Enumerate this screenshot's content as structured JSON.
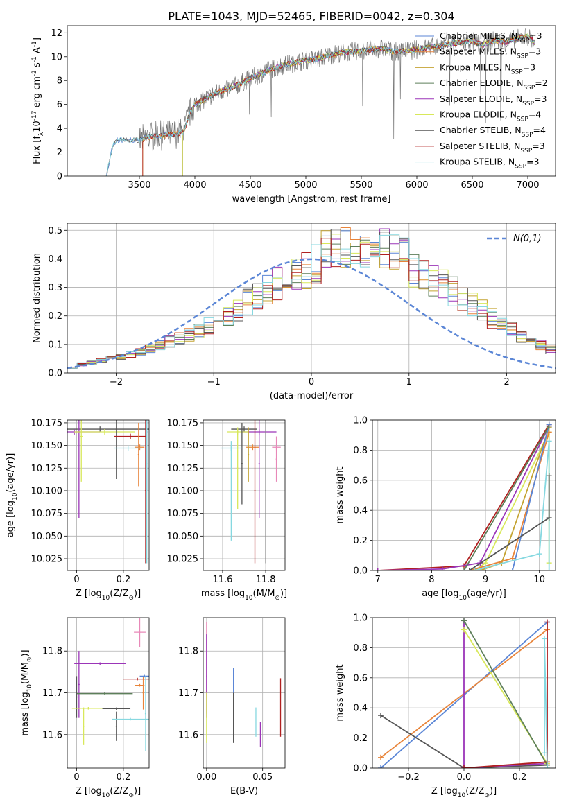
{
  "figure_title": "PLATE=1043, MJD=52465, FIBERID=0042, z=0.304",
  "models": [
    {
      "label": "Chabrier MILES, N$_{SSP}$=3",
      "color": "#5b86d6"
    },
    {
      "label": "Salpeter MILES, N$_{SSP}$=3",
      "color": "#e8843a"
    },
    {
      "label": "Kroupa MILES, N$_{SSP}$=3",
      "color": "#c4a332"
    },
    {
      "label": "Chabrier ELODIE, N$_{SSP}$=2",
      "color": "#5d7f5a"
    },
    {
      "label": "Salpeter ELODIE, N$_{SSP}$=3",
      "color": "#9b35b8"
    },
    {
      "label": "Kroupa ELODIE, N$_{SSP}$=4",
      "color": "#d8e85a"
    },
    {
      "label": "Chabrier STELIB, N$_{SSP}$=4",
      "color": "#555555"
    },
    {
      "label": "Salpeter STELIB, N$_{SSP}$=3",
      "color": "#b02020"
    },
    {
      "label": "Kroupa STELIB, N$_{SSP}$=3",
      "color": "#86d8e0"
    }
  ],
  "extra_colors": {
    "pink": "#e888b8",
    "gray": "#888888"
  },
  "chart_data": [
    {
      "id": "spectrum",
      "type": "line",
      "xlabel": "wavelength [Angstrom, rest frame]",
      "ylabel": "Flux [f$_\\lambda$10$^{-17}$ erg cm$^{-2}$ s$^{-1}$ A$^{-1}$]",
      "xlim": [
        2850,
        7250
      ],
      "ylim": [
        0,
        12.6
      ],
      "xticks": [
        3500,
        4000,
        4500,
        5000,
        5500,
        6000,
        6500,
        7000
      ],
      "yticks": [
        0,
        2,
        4,
        6,
        8,
        10,
        12
      ],
      "legend_location": "top-right",
      "continuum_x": [
        3200,
        3260,
        3300,
        3400,
        3500,
        3600,
        3700,
        3800,
        3900,
        3950,
        4000,
        4100,
        4200,
        4300,
        4400,
        4500,
        4600,
        4700,
        4800,
        4900,
        5000,
        5100,
        5200,
        5300,
        5400,
        5500,
        5600,
        5700,
        5800,
        5900,
        6000,
        6100,
        6200,
        6300,
        6400,
        6500,
        6600,
        6700,
        6800,
        6900,
        7000,
        7060
      ],
      "continuum_y": [
        0,
        2.5,
        3.0,
        3.0,
        3.0,
        3.3,
        3.4,
        3.5,
        3.7,
        5.2,
        6.0,
        6.5,
        7.0,
        7.3,
        7.7,
        8.2,
        8.6,
        9.0,
        9.3,
        9.5,
        9.7,
        9.8,
        10.1,
        10.3,
        10.4,
        10.5,
        10.6,
        10.7,
        10.4,
        10.5,
        10.6,
        10.8,
        10.9,
        11.1,
        11.2,
        11.3,
        11.0,
        11.4,
        11.2,
        11.5,
        11.7,
        11.2
      ],
      "model_start_wavelengths": [
        3200,
        3530,
        3530,
        3890,
        3890,
        3890,
        3200,
        3530,
        3200
      ]
    },
    {
      "id": "residual_histogram",
      "type": "bar",
      "xlabel": "(data-model)/error",
      "ylabel": "Normed distribution",
      "xlim": [
        -2.5,
        2.5
      ],
      "ylim": [
        0,
        0.525
      ],
      "xticks": [
        -2,
        -1,
        0,
        1,
        2
      ],
      "yticks": [
        0.0,
        0.1,
        0.2,
        0.3,
        0.4,
        0.5
      ],
      "grid": true,
      "legend_location": "top-right",
      "reference_curve": {
        "label": "$\\mathcal{N}(0,1)$",
        "color": "#5b86d6",
        "style": "dashed"
      },
      "bin_edges_start": -2.5,
      "bin_width": 0.1,
      "base_values": [
        0.02,
        0.03,
        0.035,
        0.045,
        0.05,
        0.055,
        0.065,
        0.075,
        0.085,
        0.095,
        0.11,
        0.12,
        0.135,
        0.15,
        0.165,
        0.185,
        0.2,
        0.22,
        0.245,
        0.27,
        0.29,
        0.31,
        0.325,
        0.34,
        0.36,
        0.375,
        0.385,
        0.39,
        0.395,
        0.4,
        0.4,
        0.395,
        0.39,
        0.38,
        0.37,
        0.355,
        0.34,
        0.325,
        0.305,
        0.285,
        0.26,
        0.235,
        0.215,
        0.19,
        0.17,
        0.15,
        0.13,
        0.11,
        0.095,
        0.08
      ]
    },
    {
      "id": "age_vs_Z",
      "type": "scatter",
      "xlabel": "Z [log$_{10}$(Z/Z$_\\odot$)]",
      "ylabel": "age  [log$_{10}$(age/yr)]",
      "xlim": [
        -0.04,
        0.31
      ],
      "ylim": [
        10.012,
        10.178
      ],
      "xticks": [
        0.0,
        0.2
      ],
      "yticks": [
        10.025,
        10.05,
        10.075,
        10.1,
        10.125,
        10.15,
        10.175
      ],
      "ytick_labels": [
        "10.025",
        "10.050",
        "10.075",
        "10.100",
        "10.125",
        "10.150",
        "10.175"
      ],
      "grid": true,
      "points": [
        {
          "x": 0.1,
          "y": 10.168,
          "xerr": 0.25,
          "yerr": 0.003,
          "model": 6
        },
        {
          "x": 0.01,
          "y": 10.165,
          "xerr": 0.005,
          "yerr": 0.095,
          "model": 4
        },
        {
          "x": -0.01,
          "y": 10.165,
          "xerr": 0.11,
          "yerr": 0.003,
          "model": 4
        },
        {
          "x": 0.12,
          "y": 10.165,
          "xerr": 0.13,
          "yerr": 0.003,
          "model": 5
        },
        {
          "x": 0.02,
          "y": 10.16,
          "xerr": 0.005,
          "yerr": 0.05,
          "model": 5
        },
        {
          "x": 0.17,
          "y": 10.168,
          "xerr": 0.003,
          "yerr": 0.055,
          "model": 6
        },
        {
          "x": 0.23,
          "y": 10.16,
          "xerr": 0.07,
          "yerr": 0.003,
          "model": 7
        },
        {
          "x": 0.265,
          "y": 10.14,
          "xerr": 0.003,
          "yerr": 0.035,
          "model": 1
        },
        {
          "x": 0.27,
          "y": 10.148,
          "xerr": 0.02,
          "yerr": 0.003,
          "model": 1
        },
        {
          "x": 0.22,
          "y": 10.147,
          "xerr": 0.06,
          "yerr": 0.003,
          "model": 8
        },
        {
          "x": 0.3,
          "y": 10.165,
          "xerr": 0.003,
          "yerr": 0.065,
          "model": 0
        },
        {
          "x": 0.3,
          "y": 10.13,
          "xerr": 0.003,
          "yerr": 0.11,
          "model": 8
        },
        {
          "x": 0.295,
          "y": 10.1,
          "xerr": 0.003,
          "yerr": 0.08,
          "model": 7
        }
      ]
    },
    {
      "id": "age_vs_mass",
      "type": "scatter",
      "xlabel": "mass [log$_{10}$(M/M$_\\odot$)]",
      "ylabel": "",
      "xlim": [
        11.51,
        11.89
      ],
      "ylim": [
        10.012,
        10.178
      ],
      "xticks": [
        11.6,
        11.8
      ],
      "yticks": [
        10.025,
        10.05,
        10.075,
        10.1,
        10.125,
        10.15,
        10.175
      ],
      "ytick_labels": [
        "10.025",
        "10.050",
        "10.075",
        "10.100",
        "10.125",
        "10.150",
        "10.175"
      ],
      "grid": true,
      "points": [
        {
          "x": 11.7,
          "y": 10.168,
          "xerr": 0.06,
          "yerr": 0.003,
          "model": 6
        },
        {
          "x": 11.77,
          "y": 10.165,
          "xerr": 0.08,
          "yerr": 0.003,
          "model": 4
        },
        {
          "x": 11.77,
          "y": 10.13,
          "xerr": 0.003,
          "yerr": 0.06,
          "model": 4
        },
        {
          "x": 11.67,
          "y": 10.165,
          "xerr": 0.05,
          "yerr": 0.003,
          "model": 5
        },
        {
          "x": 11.67,
          "y": 10.125,
          "xerr": 0.003,
          "yerr": 0.045,
          "model": 5
        },
        {
          "x": 11.69,
          "y": 10.13,
          "xerr": 0.003,
          "yerr": 0.045,
          "model": 6
        },
        {
          "x": 11.64,
          "y": 10.147,
          "xerr": 0.05,
          "yerr": 0.003,
          "model": 8
        },
        {
          "x": 11.64,
          "y": 10.1,
          "xerr": 0.003,
          "yerr": 0.055,
          "model": 8
        },
        {
          "x": 11.74,
          "y": 10.148,
          "xerr": 0.03,
          "yerr": 0.003,
          "model": 1
        },
        {
          "x": 11.72,
          "y": 10.14,
          "xerr": 0.003,
          "yerr": 0.03,
          "model": 2
        },
        {
          "x": 11.75,
          "y": 10.1,
          "xerr": 0.003,
          "yerr": 0.08,
          "model": 7
        },
        {
          "x": 11.85,
          "y": 10.135,
          "xerr": 0.003,
          "yerr": 0.025,
          "model": "pink"
        },
        {
          "x": 11.85,
          "y": 10.148,
          "xerr": 0.02,
          "yerr": 0.003,
          "model": "pink"
        },
        {
          "x": 11.8,
          "y": 10.1,
          "xerr": 0.003,
          "yerr": 0.08,
          "model": "gray"
        }
      ]
    },
    {
      "id": "weight_vs_age",
      "type": "line",
      "xlabel": "age  [log$_{10}$(age/yr)]",
      "ylabel": "mass weight",
      "xlim": [
        6.9,
        10.3
      ],
      "ylim": [
        0,
        1.0
      ],
      "xticks": [
        7,
        8,
        9,
        10
      ],
      "yticks": [
        0.0,
        0.2,
        0.4,
        0.6,
        0.8,
        1.0
      ],
      "grid": true,
      "series": [
        {
          "model": 7,
          "x": [
            7.0,
            8.6,
            10.18
          ],
          "y": [
            0.0,
            0.03,
            0.97
          ]
        },
        {
          "model": 4,
          "x": [
            7.0,
            8.2,
            8.9,
            10.18
          ],
          "y": [
            0.0,
            0.01,
            0.05,
            0.96
          ]
        },
        {
          "model": 5,
          "x": [
            8.8,
            9.0,
            10.18,
            10.18
          ],
          "y": [
            0.0,
            0.05,
            0.92,
            0.05
          ]
        },
        {
          "model": 2,
          "x": [
            8.9,
            9.3,
            10.18
          ],
          "y": [
            0.0,
            0.05,
            0.95
          ]
        },
        {
          "model": 1,
          "x": [
            8.7,
            9.5,
            10.18
          ],
          "y": [
            0.0,
            0.08,
            0.92
          ]
        },
        {
          "model": 0,
          "x": [
            9.5,
            10.18
          ],
          "y": [
            0.0,
            0.97
          ]
        },
        {
          "model": 8,
          "x": [
            8.8,
            9.0,
            10.0,
            10.18,
            10.18
          ],
          "y": [
            0.0,
            0.02,
            0.11,
            0.86,
            0.0
          ]
        },
        {
          "model": 6,
          "x": [
            8.7,
            10.18,
            10.18
          ],
          "y": [
            0.0,
            0.35,
            0.63
          ]
        },
        {
          "model": 3,
          "x": [
            8.6,
            10.18
          ],
          "y": [
            0.0,
            0.96
          ]
        }
      ]
    },
    {
      "id": "mass_vs_Z",
      "type": "scatter",
      "xlabel": "Z [log$_{10}$(Z/Z$_\\odot$)]",
      "ylabel": "mass [log$_{10}$(M/M$_\\odot$)]",
      "xlim": [
        -0.04,
        0.31
      ],
      "ylim": [
        11.52,
        11.88
      ],
      "xticks": [
        0.0,
        0.2
      ],
      "yticks": [
        11.6,
        11.7,
        11.8
      ],
      "grid": true,
      "points": [
        {
          "x": 0.1,
          "y": 11.77,
          "xerr": 0.11,
          "yerr": 0.003,
          "model": 4
        },
        {
          "x": 0.01,
          "y": 11.72,
          "xerr": 0.003,
          "yerr": 0.08,
          "model": 4
        },
        {
          "x": 0.12,
          "y": 11.698,
          "xerr": 0.12,
          "yerr": 0.003,
          "model": 3
        },
        {
          "x": 0.0,
          "y": 11.69,
          "xerr": 0.003,
          "yerr": 0.05,
          "model": 6
        },
        {
          "x": 0.05,
          "y": 11.663,
          "xerr": 0.07,
          "yerr": 0.003,
          "model": 5
        },
        {
          "x": 0.03,
          "y": 11.62,
          "xerr": 0.003,
          "yerr": 0.045,
          "model": 5
        },
        {
          "x": 0.17,
          "y": 11.662,
          "xerr": 0.06,
          "yerr": 0.003,
          "model": 6
        },
        {
          "x": 0.17,
          "y": 11.62,
          "xerr": 0.003,
          "yerr": 0.035,
          "model": 6
        },
        {
          "x": 0.23,
          "y": 11.637,
          "xerr": 0.08,
          "yerr": 0.003,
          "model": 8
        },
        {
          "x": 0.26,
          "y": 11.733,
          "xerr": 0.06,
          "yerr": 0.003,
          "model": 7
        },
        {
          "x": 0.285,
          "y": 11.7,
          "xerr": 0.003,
          "yerr": 0.04,
          "model": 1
        },
        {
          "x": 0.27,
          "y": 11.718,
          "xerr": 0.02,
          "yerr": 0.003,
          "model": 1
        },
        {
          "x": 0.29,
          "y": 11.74,
          "xerr": 0.02,
          "yerr": 0.003,
          "model": 0
        },
        {
          "x": 0.295,
          "y": 11.65,
          "xerr": 0.003,
          "yerr": 0.09,
          "model": 8
        },
        {
          "x": 0.27,
          "y": 11.845,
          "xerr": 0.025,
          "yerr": 0.035,
          "model": "pink"
        }
      ]
    },
    {
      "id": "mass_vs_ebv",
      "type": "scatter",
      "xlabel": "E(B-V)",
      "ylabel": "",
      "xlim": [
        -0.003,
        0.07
      ],
      "ylim": [
        11.52,
        11.88
      ],
      "xticks": [
        0.0,
        0.05
      ],
      "xtick_labels": [
        "0.00",
        "0.05"
      ],
      "yticks": [
        11.6,
        11.7,
        11.8
      ],
      "grid": true,
      "points": [
        {
          "x": 0.0,
          "y": 11.76,
          "xerr": 0.0003,
          "yerr": 0.11,
          "model": "pink"
        },
        {
          "x": 0.0,
          "y": 11.74,
          "xerr": 0.0003,
          "yerr": 0.1,
          "model": 4
        },
        {
          "x": 0.0,
          "y": 11.64,
          "xerr": 0.0003,
          "yerr": 0.06,
          "model": 5
        },
        {
          "x": 0.024,
          "y": 11.72,
          "xerr": 0.0003,
          "yerr": 0.04,
          "model": 0
        },
        {
          "x": 0.024,
          "y": 11.64,
          "xerr": 0.0003,
          "yerr": 0.06,
          "model": 6
        },
        {
          "x": 0.044,
          "y": 11.63,
          "xerr": 0.0003,
          "yerr": 0.035,
          "model": 8
        },
        {
          "x": 0.048,
          "y": 11.6,
          "xerr": 0.0003,
          "yerr": 0.03,
          "model": 4
        },
        {
          "x": 0.066,
          "y": 11.665,
          "xerr": 0.0003,
          "yerr": 0.07,
          "model": 7
        }
      ]
    },
    {
      "id": "weight_vs_Z",
      "type": "line",
      "xlabel": "Z [log$_{10}$(Z/Z$_\\odot$)]",
      "ylabel": "mass weight",
      "xlim": [
        -0.33,
        0.33
      ],
      "ylim": [
        0,
        1.0
      ],
      "xticks": [
        -0.2,
        0.0,
        0.2
      ],
      "xtick_labels": [
        "−0.2",
        "0.0",
        "0.2"
      ],
      "yticks": [
        0.0,
        0.2,
        0.4,
        0.6,
        0.8,
        1.0
      ],
      "grid": true,
      "series": [
        {
          "model": 0,
          "x": [
            -0.3,
            0.3
          ],
          "y": [
            0.0,
            0.97
          ]
        },
        {
          "model": 1,
          "x": [
            -0.3,
            0.3
          ],
          "y": [
            0.07,
            0.92
          ]
        },
        {
          "model": 6,
          "x": [
            -0.3,
            0.0,
            0.3
          ],
          "y": [
            0.35,
            0.0,
            0.02
          ]
        },
        {
          "model": 4,
          "x": [
            0.0,
            0.0,
            0.3
          ],
          "y": [
            0.98,
            0.0,
            0.03
          ]
        },
        {
          "model": 5,
          "x": [
            0.0,
            0.3
          ],
          "y": [
            0.92,
            0.03
          ]
        },
        {
          "model": 3,
          "x": [
            0.0,
            0.3
          ],
          "y": [
            0.98,
            0.02
          ]
        },
        {
          "model": 7,
          "x": [
            0.0,
            0.3,
            0.3
          ],
          "y": [
            0.0,
            0.04,
            0.97
          ]
        },
        {
          "model": 8,
          "x": [
            0.29,
            0.29,
            0.3
          ],
          "y": [
            0.1,
            0.86,
            0.0
          ]
        }
      ]
    }
  ]
}
